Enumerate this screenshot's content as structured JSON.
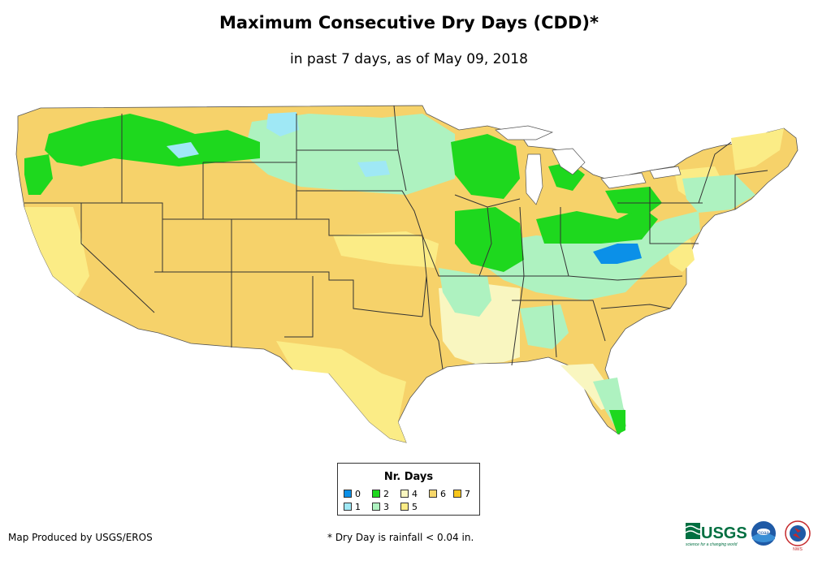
{
  "header": {
    "title": "Maximum Consecutive Dry Days (CDD)*",
    "subtitle": "in past 7 days, as of May 09, 2018"
  },
  "legend": {
    "title": "Nr. Days",
    "items": [
      {
        "label": "0",
        "color": "#0b90e8"
      },
      {
        "label": "1",
        "color": "#9fe8f5"
      },
      {
        "label": "2",
        "color": "#1ed81e"
      },
      {
        "label": "3",
        "color": "#aef2c0"
      },
      {
        "label": "4",
        "color": "#f9f6c0"
      },
      {
        "label": "5",
        "color": "#fbec86"
      },
      {
        "label": "6",
        "color": "#f7d76a"
      },
      {
        "label": "7",
        "color": "#f7c51a"
      }
    ]
  },
  "footer": {
    "credit": "Map Produced by USGS/EROS",
    "note": "* Dry Day is rainfall < 0.04 in."
  },
  "logos": {
    "usgs_text": "USGS",
    "usgs_tagline": "science for a changing world",
    "noaa_text": "noaa",
    "nws_text": "NWS"
  }
}
